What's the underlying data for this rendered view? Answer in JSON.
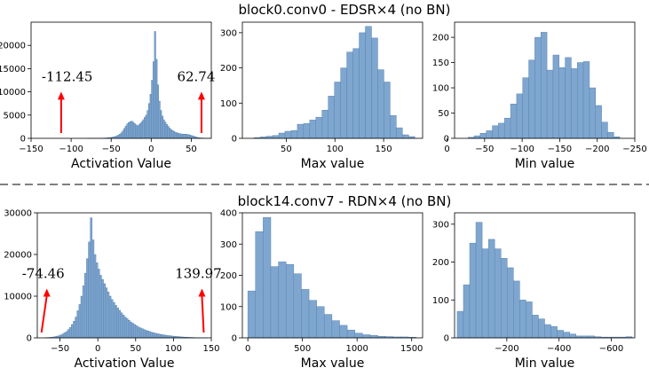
{
  "rows": [
    {
      "title": "block0.conv0 - EDSR×4 (no BN)"
    },
    {
      "title": "block14.conv7 - RDN×4 (no BN)"
    }
  ],
  "style": {
    "bar_fill": "#7ea6cf",
    "bar_edge": "#5b85b3",
    "arrow": "#ff0000",
    "separator": "#555555"
  },
  "chart_data": [
    {
      "type": "bar",
      "row": 0,
      "col": 0,
      "xlabel": "Activation Value",
      "xlim": [
        -150,
        75
      ],
      "ylim": [
        0,
        25000
      ],
      "xticks": [
        -150,
        -100,
        -50,
        0,
        50
      ],
      "yticks": [
        0,
        5000,
        10000,
        15000,
        20000
      ],
      "bin_edges": [
        -80,
        75
      ],
      "values": [
        10,
        10,
        10,
        10,
        20,
        20,
        20,
        30,
        30,
        40,
        50,
        60,
        80,
        100,
        130,
        160,
        200,
        260,
        330,
        420,
        540,
        700,
        900,
        1200,
        1600,
        2100,
        2600,
        3100,
        3400,
        3600,
        3700,
        3500,
        3200,
        2900,
        2700,
        2900,
        3200,
        3600,
        4000,
        4500,
        5000,
        6000,
        7500,
        9500,
        12500,
        16500,
        23000,
        17000,
        11500,
        8000,
        6000,
        4800,
        4000,
        3500,
        3000,
        2600,
        2200,
        1900,
        1700,
        1500,
        1300,
        1200,
        1100,
        1000,
        950,
        900,
        900,
        900,
        850,
        800,
        700,
        600,
        500,
        400,
        300,
        200,
        150,
        100,
        80,
        60,
        50,
        40,
        30,
        20,
        10
      ],
      "annotations": [
        {
          "text": "-112.45",
          "x": -112.45
        },
        {
          "text": "62.74",
          "x": 62.74
        }
      ]
    },
    {
      "type": "bar",
      "row": 0,
      "col": 1,
      "xlabel": "Max value",
      "xlim": [
        5,
        190
      ],
      "ylim": [
        0,
        330
      ],
      "xticks": [
        50,
        100,
        150
      ],
      "yticks": [
        0,
        100,
        200,
        300
      ],
      "bin_edges": [
        17,
        182
      ],
      "values": [
        2,
        4,
        6,
        8,
        15,
        20,
        22,
        40,
        42,
        52,
        60,
        80,
        120,
        160,
        200,
        245,
        255,
        300,
        318,
        285,
        195,
        160,
        65,
        30,
        10,
        5
      ]
    },
    {
      "type": "bar",
      "row": 0,
      "col": 2,
      "xlabel": "Min value",
      "xlim": [
        -10,
        -250
      ],
      "ylim": [
        0,
        230
      ],
      "xticks": [
        0,
        -50,
        -100,
        -150,
        -200,
        -250
      ],
      "yticks": [
        0,
        50,
        100,
        150,
        200
      ],
      "bin_edges": [
        -28,
        -230
      ],
      "values": [
        2,
        5,
        10,
        15,
        25,
        30,
        40,
        68,
        88,
        120,
        155,
        200,
        210,
        135,
        165,
        140,
        160,
        138,
        150,
        152,
        100,
        65,
        32,
        12,
        3
      ]
    },
    {
      "type": "bar",
      "row": 1,
      "col": 0,
      "xlabel": "Activation Value",
      "xlim": [
        -80,
        150
      ],
      "ylim": [
        0,
        30000
      ],
      "xticks": [
        -50,
        0,
        50,
        100,
        150
      ],
      "yticks": [
        0,
        10000,
        20000,
        30000
      ],
      "bin_edges": [
        -70,
        145
      ],
      "values": [
        50,
        80,
        100,
        150,
        200,
        300,
        400,
        500,
        700,
        900,
        1200,
        1500,
        2000,
        2500,
        3200,
        4000,
        5000,
        6500,
        8000,
        10000,
        12500,
        15500,
        19000,
        23000,
        28800,
        23500,
        20000,
        18000,
        16500,
        15000,
        14000,
        13000,
        12000,
        11000,
        10000,
        9200,
        8500,
        7800,
        7200,
        6600,
        6000,
        5500,
        5000,
        4600,
        4200,
        3800,
        3500,
        3200,
        2900,
        2600,
        2400,
        2200,
        2000,
        1800,
        1650,
        1500,
        1350,
        1200,
        1100,
        1000,
        900,
        820,
        740,
        660,
        600,
        540,
        480,
        430,
        380,
        340,
        300,
        260,
        220,
        190,
        160,
        140,
        120,
        100,
        80,
        60,
        40,
        30,
        20,
        15,
        10,
        5
      ],
      "annotations": [
        {
          "text": "-74.46",
          "x": -74.46
        },
        {
          "text": "139.97",
          "x": 139.97
        }
      ]
    },
    {
      "type": "bar",
      "row": 1,
      "col": 1,
      "xlabel": "Max value",
      "xlim": [
        -50,
        1600
      ],
      "ylim": [
        0,
        400
      ],
      "xticks": [
        0,
        500,
        1000,
        1500
      ],
      "yticks": [
        0,
        100,
        200,
        300,
        400
      ],
      "bin_edges": [
        0,
        1540
      ],
      "values": [
        150,
        340,
        385,
        228,
        243,
        235,
        205,
        155,
        120,
        100,
        75,
        55,
        40,
        25,
        15,
        10,
        8,
        5,
        4,
        3,
        3,
        2
      ]
    },
    {
      "type": "bar",
      "row": 1,
      "col": 2,
      "xlabel": "Min value",
      "xlim": [
        0,
        -690
      ],
      "ylim": [
        0,
        330
      ],
      "xticks": [
        -200,
        -400,
        -600
      ],
      "yticks": [
        0,
        100,
        200,
        300
      ],
      "bin_edges": [
        -10,
        -680
      ],
      "values": [
        70,
        140,
        250,
        305,
        235,
        260,
        235,
        210,
        185,
        150,
        100,
        95,
        60,
        50,
        35,
        30,
        20,
        15,
        10,
        5,
        5,
        5,
        3,
        2,
        2,
        2,
        2,
        3
      ]
    }
  ]
}
